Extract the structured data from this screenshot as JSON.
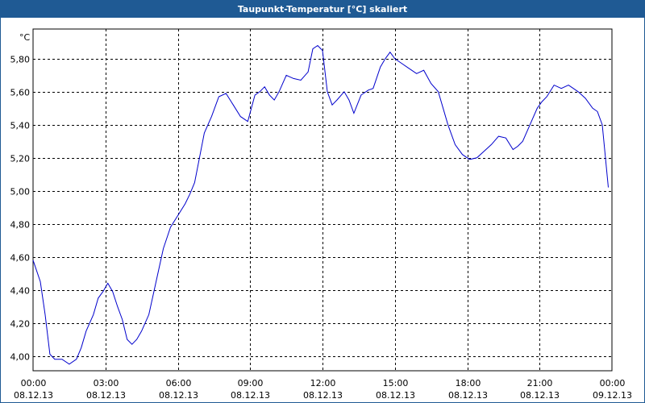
{
  "window": {
    "title": "Taupunkt-Temperatur [°C] skaliert"
  },
  "colors": {
    "titlebar": "#1f5a94",
    "line": "#0000cc",
    "grid": "#000000"
  },
  "chart_data": {
    "type": "line",
    "title": "Taupunkt-Temperatur [°C] skaliert",
    "ylabel": "°C",
    "xlabel": "",
    "ylim": [
      3.91,
      5.98
    ],
    "xlim": [
      0,
      24
    ],
    "grid": true,
    "y_ticks": [
      {
        "value": 4.0,
        "label": "4,00"
      },
      {
        "value": 4.2,
        "label": "4,20"
      },
      {
        "value": 4.4,
        "label": "4,40"
      },
      {
        "value": 4.6,
        "label": "4,60"
      },
      {
        "value": 4.8,
        "label": "4,80"
      },
      {
        "value": 5.0,
        "label": "5,00"
      },
      {
        "value": 5.2,
        "label": "5,20"
      },
      {
        "value": 5.4,
        "label": "5,40"
      },
      {
        "value": 5.6,
        "label": "5,60"
      },
      {
        "value": 5.8,
        "label": "5,80"
      }
    ],
    "x_ticks": [
      {
        "value": 0,
        "time": "00:00",
        "date": "08.12.13"
      },
      {
        "value": 3,
        "time": "03:00",
        "date": "08.12.13"
      },
      {
        "value": 6,
        "time": "06:00",
        "date": "08.12.13"
      },
      {
        "value": 9,
        "time": "09:00",
        "date": "08.12.13"
      },
      {
        "value": 12,
        "time": "12:00",
        "date": "08.12.13"
      },
      {
        "value": 15,
        "time": "15:00",
        "date": "08.12.13"
      },
      {
        "value": 18,
        "time": "18:00",
        "date": "08.12.13"
      },
      {
        "value": 21,
        "time": "21:00",
        "date": "08.12.13"
      },
      {
        "value": 24,
        "time": "00:00",
        "date": "09.12.13"
      }
    ],
    "series": [
      {
        "x": [
          0,
          0.3,
          0.5,
          0.7,
          0.9,
          1.2,
          1.5,
          1.8,
          2.0,
          2.2,
          2.5,
          2.7,
          2.9,
          3.1,
          3.3,
          3.5,
          3.7,
          3.9,
          4.1,
          4.3,
          4.5,
          4.8,
          5.1,
          5.4,
          5.7,
          6.0,
          6.3,
          6.5,
          6.7,
          6.9,
          7.1,
          7.4,
          7.7,
          8.0,
          8.3,
          8.6,
          8.9,
          9.2,
          9.4,
          9.6,
          9.8,
          10.0,
          10.2,
          10.5,
          10.8,
          11.1,
          11.4,
          11.6,
          11.8,
          12.0,
          12.2,
          12.4,
          12.6,
          12.9,
          13.1,
          13.3,
          13.6,
          13.9,
          14.1,
          14.4,
          14.6,
          14.8,
          15.0,
          15.3,
          15.6,
          15.9,
          16.2,
          16.5,
          16.8,
          17.0,
          17.2,
          17.5,
          17.8,
          18.1,
          18.4,
          18.7,
          19.0,
          19.3,
          19.6,
          19.9,
          20.1,
          20.3,
          20.6,
          20.9,
          21.1,
          21.3,
          21.6,
          21.9,
          22.2,
          22.4,
          22.6,
          22.9,
          23.2,
          23.4,
          23.6,
          23.85
        ],
        "y": [
          4.58,
          4.45,
          4.25,
          4.01,
          3.98,
          3.98,
          3.95,
          3.98,
          4.05,
          4.15,
          4.25,
          4.35,
          4.39,
          4.44,
          4.39,
          4.3,
          4.22,
          4.1,
          4.07,
          4.1,
          4.15,
          4.25,
          4.45,
          4.65,
          4.78,
          4.85,
          4.92,
          4.98,
          5.05,
          5.2,
          5.35,
          5.45,
          5.57,
          5.59,
          5.52,
          5.45,
          5.42,
          5.58,
          5.6,
          5.63,
          5.58,
          5.55,
          5.6,
          5.7,
          5.68,
          5.67,
          5.72,
          5.86,
          5.88,
          5.85,
          5.6,
          5.52,
          5.55,
          5.6,
          5.55,
          5.47,
          5.58,
          5.61,
          5.62,
          5.75,
          5.8,
          5.84,
          5.8,
          5.77,
          5.74,
          5.71,
          5.73,
          5.65,
          5.6,
          5.5,
          5.4,
          5.28,
          5.22,
          5.19,
          5.2,
          5.24,
          5.28,
          5.33,
          5.32,
          5.25,
          5.27,
          5.3,
          5.4,
          5.5,
          5.54,
          5.57,
          5.64,
          5.62,
          5.64,
          5.62,
          5.6,
          5.56,
          5.5,
          5.48,
          5.4,
          5.02
        ]
      }
    ]
  }
}
